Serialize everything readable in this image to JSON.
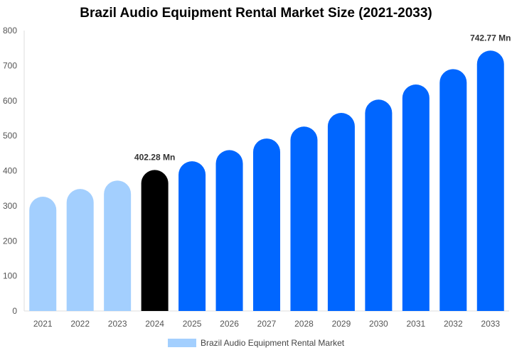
{
  "chart_data": {
    "type": "bar",
    "title": "Brazil Audio Equipment Rental Market Size (2021-2033)",
    "categories": [
      "2021",
      "2022",
      "2023",
      "2024",
      "2025",
      "2026",
      "2027",
      "2028",
      "2029",
      "2030",
      "2031",
      "2032",
      "2033"
    ],
    "series": [
      {
        "name": "Brazil Audio Equipment Rental Market",
        "values": [
          326,
          348,
          372,
          402.28,
          427,
          459,
          492,
          526,
          565,
          603,
          646,
          690,
          742.77
        ]
      }
    ],
    "data_labels": {
      "2024": "402.28 Mn",
      "2033": "742.77 Mn"
    },
    "ylim": [
      0,
      800
    ],
    "yticks": [
      0,
      100,
      200,
      300,
      400,
      500,
      600,
      700,
      800
    ],
    "grid": false,
    "legend": "bottom",
    "colors": {
      "historical": "#a3cffe",
      "base_year": "#000000",
      "forecast": "#0066ff"
    }
  }
}
